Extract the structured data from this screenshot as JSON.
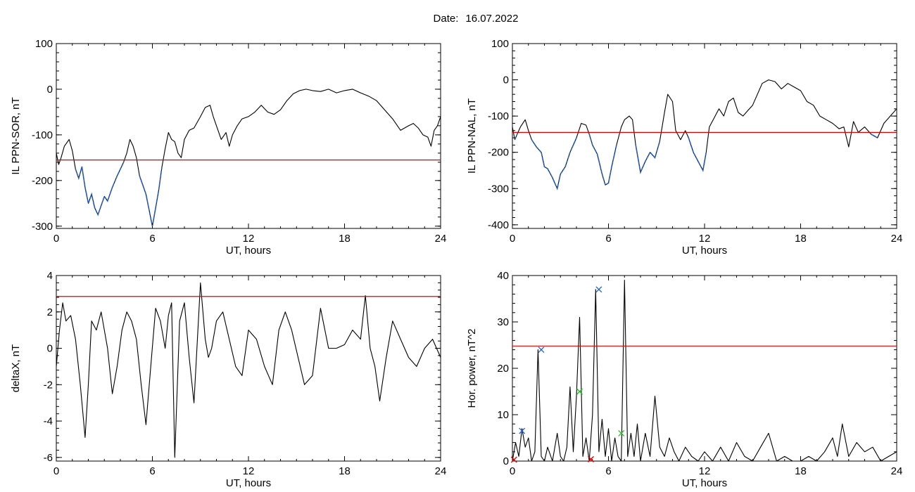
{
  "figure": {
    "date_label": "Date:",
    "date_value": "16.07.2022"
  },
  "colors": {
    "curve": "#000000",
    "threshold": "#e00000",
    "substorm": "#1f5fcf",
    "marker_blue": "#1f5fcf",
    "marker_green": "#20c020",
    "marker_red": "#e00000"
  },
  "chart_data": [
    {
      "type": "line",
      "ylabel": "IL PPN-SOR, nT",
      "xlabel": "UT, hours",
      "xlim": [
        0,
        24
      ],
      "ylim": [
        -305,
        100
      ],
      "xticks": [
        0,
        6,
        12,
        18,
        24
      ],
      "yticks": [
        -300,
        -200,
        -100,
        0,
        100
      ],
      "threshold": -155,
      "highlight_below_threshold": true,
      "series": [
        {
          "x": [
            0,
            0.15,
            0.3,
            0.5,
            0.8,
            1.0,
            1.2,
            1.4,
            1.6,
            1.8,
            2.0,
            2.2,
            2.4,
            2.6,
            2.8,
            3.0,
            3.2,
            3.5,
            3.8,
            4.0,
            4.2,
            4.4,
            4.6,
            4.8,
            5.0,
            5.2,
            5.4,
            5.6,
            5.8,
            6.0,
            6.2,
            6.4,
            6.6,
            6.8,
            7.0,
            7.2,
            7.4,
            7.6,
            7.8,
            8.0,
            8.3,
            8.6,
            9.0,
            9.3,
            9.6,
            9.8,
            10.0,
            10.3,
            10.6,
            10.8,
            11.0,
            11.3,
            11.6,
            12.0,
            12.4,
            12.8,
            13.2,
            13.6,
            14.0,
            14.4,
            14.8,
            15.2,
            15.6,
            16.0,
            16.5,
            17.0,
            17.5,
            18.0,
            18.5,
            19.0,
            19.5,
            20.0,
            20.5,
            21.0,
            21.5,
            22.0,
            22.3,
            22.6,
            22.9,
            23.2,
            23.4,
            23.6,
            23.8,
            24.0
          ],
          "y": [
            -140,
            -165,
            -150,
            -125,
            -110,
            -135,
            -175,
            -195,
            -170,
            -215,
            -250,
            -230,
            -260,
            -275,
            -255,
            -235,
            -245,
            -215,
            -190,
            -175,
            -160,
            -140,
            -110,
            -125,
            -150,
            -190,
            -210,
            -230,
            -265,
            -300,
            -260,
            -220,
            -170,
            -130,
            -95,
            -110,
            -115,
            -140,
            -150,
            -110,
            -90,
            -85,
            -60,
            -40,
            -35,
            -60,
            -80,
            -110,
            -95,
            -125,
            -100,
            -80,
            -65,
            -60,
            -50,
            -35,
            -50,
            -55,
            -45,
            -25,
            -10,
            -3,
            0,
            -3,
            -5,
            0,
            -8,
            -3,
            0,
            -8,
            -15,
            -25,
            -45,
            -65,
            -90,
            -80,
            -75,
            -85,
            -100,
            -105,
            -125,
            -90,
            -80,
            -60
          ]
        }
      ]
    },
    {
      "type": "line",
      "ylabel": "IL PPN-NAL, nT",
      "xlabel": "UT, hours",
      "xlim": [
        0,
        24
      ],
      "ylim": [
        -410,
        100
      ],
      "xticks": [
        0,
        6,
        12,
        18,
        24
      ],
      "yticks": [
        -400,
        -300,
        -200,
        -100,
        0,
        100
      ],
      "threshold": -145,
      "highlight_below_threshold": true,
      "series": [
        {
          "x": [
            0,
            0.15,
            0.3,
            0.5,
            0.8,
            1.0,
            1.2,
            1.5,
            1.8,
            2.0,
            2.2,
            2.5,
            2.8,
            3.0,
            3.3,
            3.6,
            4.0,
            4.3,
            4.6,
            4.8,
            5.0,
            5.3,
            5.6,
            5.8,
            6.0,
            6.2,
            6.5,
            6.8,
            7.0,
            7.3,
            7.5,
            7.7,
            8.0,
            8.3,
            8.6,
            8.9,
            9.2,
            9.5,
            9.7,
            10.0,
            10.2,
            10.5,
            10.8,
            11.0,
            11.3,
            11.6,
            11.9,
            12.1,
            12.3,
            12.6,
            12.9,
            13.2,
            13.5,
            13.8,
            14.1,
            14.4,
            14.7,
            15.0,
            15.3,
            15.6,
            16.0,
            16.4,
            16.8,
            17.2,
            17.6,
            18.0,
            18.4,
            18.8,
            19.2,
            19.6,
            20.0,
            20.4,
            20.7,
            21.0,
            21.3,
            21.6,
            22.0,
            22.4,
            22.8,
            23.2,
            23.6,
            24.0
          ],
          "y": [
            -130,
            -165,
            -150,
            -130,
            -110,
            -140,
            -165,
            -185,
            -200,
            -240,
            -245,
            -270,
            -300,
            -260,
            -240,
            -200,
            -160,
            -120,
            -125,
            -150,
            -180,
            -205,
            -260,
            -290,
            -285,
            -240,
            -180,
            -130,
            -110,
            -100,
            -110,
            -180,
            -255,
            -225,
            -200,
            -215,
            -170,
            -90,
            -40,
            -60,
            -140,
            -165,
            -140,
            -160,
            -200,
            -225,
            -250,
            -200,
            -130,
            -105,
            -80,
            -100,
            -60,
            -50,
            -90,
            -100,
            -85,
            -70,
            -40,
            -10,
            0,
            -5,
            -25,
            -10,
            -20,
            -30,
            -60,
            -70,
            -100,
            -110,
            -120,
            -135,
            -130,
            -185,
            -115,
            -145,
            -130,
            -150,
            -160,
            -120,
            -100,
            -80
          ]
        }
      ]
    },
    {
      "type": "line",
      "ylabel": "deltaX, nT",
      "xlabel": "UT, hours",
      "xlim": [
        0,
        24
      ],
      "ylim": [
        -6.2,
        4
      ],
      "xticks": [
        0,
        6,
        12,
        18,
        24
      ],
      "yticks": [
        -6,
        -4,
        -2,
        0,
        2,
        4
      ],
      "threshold": 2.85,
      "series": [
        {
          "x": [
            0,
            0.2,
            0.4,
            0.6,
            0.9,
            1.2,
            1.5,
            1.8,
            2.0,
            2.2,
            2.5,
            2.8,
            3.2,
            3.5,
            3.8,
            4.1,
            4.4,
            4.7,
            5.0,
            5.3,
            5.6,
            5.9,
            6.2,
            6.5,
            6.8,
            7.0,
            7.2,
            7.4,
            7.7,
            8.0,
            8.3,
            8.6,
            9.0,
            9.3,
            9.5,
            9.7,
            10.0,
            10.4,
            10.8,
            11.2,
            11.6,
            12.0,
            12.5,
            13.0,
            13.5,
            13.9,
            14.3,
            14.7,
            15.1,
            15.5,
            16.0,
            16.5,
            17.0,
            17.5,
            18.0,
            18.5,
            19.0,
            19.3,
            19.6,
            19.9,
            20.2,
            20.6,
            21.0,
            21.5,
            22.0,
            22.5,
            23.0,
            23.5,
            24.0
          ],
          "y": [
            -1,
            1,
            2.5,
            1.5,
            1.8,
            0.5,
            -2,
            -4.9,
            -2,
            1.5,
            1,
            2,
            0,
            -2.5,
            -1,
            1,
            2,
            1.5,
            0.5,
            -2,
            -4.2,
            -1,
            2.2,
            1.5,
            0,
            1.8,
            2.5,
            -6,
            1.5,
            2.5,
            -0.5,
            -3,
            3.6,
            0.5,
            -0.5,
            0,
            1.5,
            2,
            0.5,
            -1,
            -1.5,
            1,
            0.5,
            -1,
            -2,
            1,
            2,
            1,
            -0.5,
            -2,
            -1.5,
            2.2,
            0,
            0,
            0.2,
            1,
            0.5,
            2.9,
            0,
            -1,
            -2.9,
            -0.5,
            1.5,
            0.5,
            -0.5,
            -1,
            0,
            0.5,
            -0.5
          ]
        }
      ]
    },
    {
      "type": "line",
      "ylabel": "Hor. power, nT^2",
      "xlabel": "UT, hours",
      "xlim": [
        0,
        24
      ],
      "ylim": [
        0,
        40
      ],
      "xticks": [
        0,
        6,
        12,
        18,
        24
      ],
      "yticks": [
        0,
        10,
        20,
        30,
        40
      ],
      "threshold": 24.8,
      "series": [
        {
          "x": [
            0,
            0.2,
            0.4,
            0.6,
            0.8,
            1.0,
            1.2,
            1.4,
            1.6,
            1.8,
            2.0,
            2.2,
            2.5,
            2.8,
            3.0,
            3.2,
            3.4,
            3.6,
            3.8,
            4.0,
            4.2,
            4.4,
            4.6,
            4.8,
            5.0,
            5.2,
            5.4,
            5.6,
            5.8,
            6.0,
            6.2,
            6.4,
            6.6,
            6.8,
            7.0,
            7.2,
            7.4,
            7.6,
            7.8,
            8.0,
            8.3,
            8.6,
            8.9,
            9.2,
            9.5,
            9.8,
            10.1,
            10.4,
            10.8,
            11.2,
            11.6,
            12.0,
            12.5,
            13.0,
            13.5,
            14.0,
            14.5,
            15.0,
            15.5,
            16.0,
            16.5,
            17.0,
            17.5,
            18.0,
            18.5,
            19.0,
            19.5,
            20.0,
            20.3,
            20.6,
            21.0,
            21.5,
            22.0,
            22.5,
            23.0,
            23.5,
            24.0
          ],
          "y": [
            0,
            4,
            1,
            7,
            3,
            5,
            0,
            2,
            24,
            1,
            0,
            3,
            0,
            6,
            1,
            0,
            3,
            16,
            2,
            14,
            31,
            1,
            5,
            0,
            10,
            37,
            2,
            9,
            1,
            7,
            0,
            5,
            1,
            0,
            39,
            1,
            6,
            1,
            8,
            0,
            6,
            1,
            14,
            3,
            1,
            5,
            2,
            0,
            3,
            1,
            0,
            2,
            0,
            3,
            0,
            4,
            1,
            0,
            3,
            6,
            0,
            1,
            0,
            0,
            1,
            0,
            2,
            5,
            1,
            8,
            1,
            4,
            2,
            3,
            0,
            1,
            2
          ]
        }
      ],
      "markers": [
        {
          "x": 0.6,
          "y": 6.5,
          "color": "blue"
        },
        {
          "x": 1.8,
          "y": 24,
          "color": "blue"
        },
        {
          "x": 5.4,
          "y": 37,
          "color": "blue"
        },
        {
          "x": 4.2,
          "y": 15,
          "color": "green"
        },
        {
          "x": 6.8,
          "y": 6,
          "color": "green"
        },
        {
          "x": 0.1,
          "y": 0.3,
          "color": "red"
        },
        {
          "x": 4.9,
          "y": 0.4,
          "color": "red"
        }
      ]
    }
  ]
}
